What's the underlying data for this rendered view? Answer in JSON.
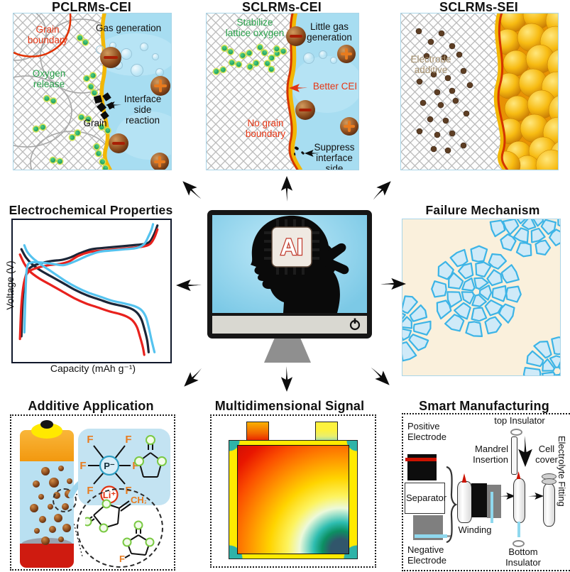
{
  "titles": {
    "tl": "PCLRMs-CEI",
    "tm": "SCLRMs-CEI",
    "tr": "SCLRMs-SEI",
    "chart": "Electrochemical Properties",
    "failure": "Failure Mechanism",
    "additive": "Additive Application",
    "signal": "Multidimensional Signal",
    "manufacturing": "Smart Manufacturing"
  },
  "icons": {
    "power": "power-icon",
    "flow_arrow": "flow-arrow-icon"
  },
  "colors": {
    "water": "#a7ddf1",
    "grid_line": "#b9b9b9",
    "boundary_gold": "#f2b705",
    "boundary_red": "#d43500",
    "oxygen_green": "#16a85a",
    "additive_dot": "#5d3e24",
    "shard_fill": "#cfeaf8",
    "shard_stroke": "#3cb4e6",
    "failure_bg": "#faf0dc",
    "chart_dark": "#1b2537",
    "chart_red": "#e8211d",
    "chart_blue": "#55c3ef"
  },
  "tl": {
    "labels": {
      "grain_boundary": "Grain\nboundary",
      "gas": "Gas generation",
      "oxygen": "Oxygen\nrelease",
      "grain": "Grain",
      "interface": "Interface\nside reaction"
    },
    "bubbles": [
      [
        121,
        50,
        5
      ],
      [
        139,
        44,
        4
      ],
      [
        158,
        56,
        7
      ],
      [
        183,
        46,
        5
      ],
      [
        199,
        60,
        4
      ],
      [
        147,
        72,
        5
      ],
      [
        173,
        79,
        8
      ],
      [
        205,
        82,
        5
      ]
    ],
    "ion_spheres": [
      [
        137,
        62,
        15,
        "minus"
      ],
      [
        207,
        102,
        14,
        "plus"
      ],
      [
        148,
        183,
        14,
        "minus"
      ],
      [
        206,
        209,
        13,
        "plus"
      ]
    ],
    "dumbbells": [
      [
        98,
        38,
        40
      ],
      [
        108,
        90,
        -25
      ],
      [
        112,
        108,
        60
      ],
      [
        101,
        148,
        15
      ],
      [
        87,
        172,
        -40
      ],
      [
        129,
        163,
        30
      ],
      [
        119,
        193,
        75
      ],
      [
        37,
        162,
        -15
      ],
      [
        61,
        208,
        10
      ],
      [
        128,
        214,
        65
      ],
      [
        52,
        122,
        20
      ]
    ],
    "diamonds": [
      [
        119,
        121,
        10
      ],
      [
        131,
        117,
        9
      ],
      [
        124,
        132,
        10
      ],
      [
        137,
        130,
        8
      ],
      [
        128,
        143,
        9
      ]
    ]
  },
  "tm": {
    "labels": {
      "stabilize": "Stabilize\nlattice oxygen",
      "little_gas": "Little gas\ngeneration",
      "better": "Better CEI",
      "no_gb": "No grain\nboundary",
      "suppress": "Suppress\ninterface\nside reaction"
    },
    "bubbles": [
      [
        143,
        62,
        7
      ],
      [
        163,
        57,
        5
      ],
      [
        178,
        65,
        4
      ]
    ],
    "ion_spheres": [
      [
        126,
        32,
        14,
        "minus"
      ],
      [
        197,
        57,
        13,
        "plus"
      ],
      [
        139,
        136,
        14,
        "minus"
      ],
      [
        201,
        159,
        13,
        "plus"
      ]
    ],
    "dumbbells": [
      [
        30,
        52,
        30
      ],
      [
        56,
        58,
        -20
      ],
      [
        79,
        52,
        50
      ],
      [
        96,
        60,
        -40
      ],
      [
        41,
        71,
        15
      ],
      [
        66,
        73,
        -30
      ],
      [
        89,
        75,
        55
      ],
      [
        19,
        81,
        -15
      ],
      [
        104,
        52,
        20
      ]
    ],
    "bits": [
      [
        127,
        191,
        6
      ],
      [
        135,
        197,
        5
      ],
      [
        124,
        199,
        4
      ]
    ]
  },
  "tr": {
    "labels": {
      "additive": "Electrode\nadditive"
    },
    "dots": [
      [
        25,
        25
      ],
      [
        42,
        40
      ],
      [
        57,
        28
      ],
      [
        72,
        46
      ],
      [
        36,
        60
      ],
      [
        61,
        62
      ],
      [
        82,
        58
      ],
      [
        26,
        96
      ],
      [
        46,
        86
      ],
      [
        66,
        91
      ],
      [
        88,
        81
      ],
      [
        51,
        111
      ],
      [
        72,
        109
      ],
      [
        31,
        126
      ],
      [
        56,
        129
      ],
      [
        77,
        123
      ],
      [
        41,
        149
      ],
      [
        63,
        151
      ],
      [
        26,
        166
      ],
      [
        51,
        171
      ],
      [
        72,
        169
      ],
      [
        46,
        191
      ],
      [
        66,
        193
      ],
      [
        88,
        186
      ],
      [
        92,
        141
      ],
      [
        97,
        101
      ]
    ],
    "gold": [
      [
        158,
        8
      ],
      [
        192,
        2
      ],
      [
        226,
        10
      ],
      [
        150,
        40
      ],
      [
        184,
        34
      ],
      [
        218,
        40
      ],
      [
        162,
        70
      ],
      [
        196,
        64
      ],
      [
        228,
        72
      ],
      [
        152,
        102
      ],
      [
        186,
        98
      ],
      [
        220,
        104
      ],
      [
        164,
        134
      ],
      [
        198,
        128
      ],
      [
        230,
        136
      ],
      [
        154,
        166
      ],
      [
        188,
        162
      ],
      [
        222,
        168
      ],
      [
        166,
        198
      ],
      [
        200,
        194
      ],
      [
        232,
        200
      ],
      [
        178,
        218
      ],
      [
        148,
        214
      ],
      [
        212,
        214
      ]
    ]
  },
  "chart_data": {
    "type": "line",
    "title": "Electrochemical Properties",
    "xlabel": "Capacity (mAh g⁻¹)",
    "ylabel": "Voltage (V)",
    "ticks": "none shown",
    "legend": "none",
    "note": "three charge/discharge voltage profiles overlaid; points are [x%, y%] of plot box, y measured from top",
    "series": [
      {
        "name": "profile-dark",
        "color": "#1b2537",
        "charge": [
          [
            3,
            86
          ],
          [
            4,
            57
          ],
          [
            6,
            40
          ],
          [
            9,
            34
          ],
          [
            15,
            31
          ],
          [
            23,
            29
          ],
          [
            31,
            28
          ],
          [
            37,
            26
          ],
          [
            43,
            23
          ],
          [
            51,
            20
          ],
          [
            59,
            19
          ],
          [
            69,
            18
          ],
          [
            79,
            17
          ],
          [
            87,
            16
          ],
          [
            91,
            14
          ],
          [
            94,
            8
          ],
          [
            96,
            2
          ]
        ],
        "discharge": [
          [
            3,
            20
          ],
          [
            6,
            26
          ],
          [
            10,
            31
          ],
          [
            16,
            36
          ],
          [
            24,
            41
          ],
          [
            32,
            46
          ],
          [
            40,
            51
          ],
          [
            48,
            55
          ],
          [
            56,
            58
          ],
          [
            64,
            61
          ],
          [
            72,
            63
          ],
          [
            78,
            65
          ],
          [
            82,
            68
          ],
          [
            85,
            73
          ],
          [
            87,
            80
          ],
          [
            89,
            89
          ],
          [
            90,
            98
          ]
        ]
      },
      {
        "name": "profile-red",
        "color": "#e8211d",
        "charge": [
          [
            2,
            88
          ],
          [
            3,
            62
          ],
          [
            5,
            44
          ],
          [
            8,
            37
          ],
          [
            14,
            34
          ],
          [
            22,
            32
          ],
          [
            30,
            31
          ],
          [
            36,
            29
          ],
          [
            42,
            25
          ],
          [
            50,
            22
          ],
          [
            58,
            21
          ],
          [
            68,
            20
          ],
          [
            78,
            19
          ],
          [
            86,
            18
          ],
          [
            91,
            16
          ],
          [
            94,
            11
          ],
          [
            96,
            5
          ]
        ],
        "discharge": [
          [
            2,
            24
          ],
          [
            5,
            31
          ],
          [
            9,
            37
          ],
          [
            15,
            42
          ],
          [
            23,
            47
          ],
          [
            31,
            52
          ],
          [
            39,
            57
          ],
          [
            47,
            61
          ],
          [
            55,
            64
          ],
          [
            63,
            67
          ],
          [
            70,
            69
          ],
          [
            75,
            71
          ],
          [
            79,
            74
          ],
          [
            82,
            79
          ],
          [
            84,
            86
          ],
          [
            86,
            94
          ],
          [
            87,
            100
          ]
        ]
      },
      {
        "name": "profile-blue",
        "color": "#55c3ef",
        "charge": [
          [
            5,
            83
          ],
          [
            6,
            47
          ],
          [
            7,
            33
          ],
          [
            10,
            30
          ],
          [
            16,
            30
          ],
          [
            24,
            31
          ],
          [
            32,
            32
          ],
          [
            40,
            29
          ],
          [
            48,
            25
          ],
          [
            56,
            22
          ],
          [
            64,
            21
          ],
          [
            74,
            20
          ],
          [
            82,
            19
          ],
          [
            87,
            16
          ],
          [
            90,
            10
          ],
          [
            92,
            5
          ],
          [
            93,
            1
          ]
        ],
        "discharge": [
          [
            5,
            17
          ],
          [
            7,
            22
          ],
          [
            11,
            27
          ],
          [
            17,
            32
          ],
          [
            25,
            38
          ],
          [
            33,
            44
          ],
          [
            41,
            49
          ],
          [
            49,
            53
          ],
          [
            57,
            56
          ],
          [
            65,
            59
          ],
          [
            73,
            61
          ],
          [
            80,
            63
          ],
          [
            85,
            66
          ],
          [
            88,
            71
          ],
          [
            90,
            79
          ],
          [
            92,
            89
          ],
          [
            94,
            98
          ]
        ]
      }
    ]
  },
  "monitor": {
    "chip": "AI"
  },
  "failure": {
    "clusters": [
      [
        104,
        102,
        64,
        3
      ],
      [
        180,
        -6,
        60,
        3
      ],
      [
        -8,
        152,
        50,
        2
      ],
      [
        218,
        214,
        50,
        2
      ]
    ]
  },
  "additive": {
    "f": "F",
    "p": "P⁻",
    "li": "Li⁺",
    "ch2": "CH₂",
    "dots": [
      [
        40,
        72,
        6
      ],
      [
        62,
        68,
        4
      ],
      [
        27,
        90,
        5
      ],
      [
        52,
        88,
        7
      ],
      [
        74,
        86,
        4
      ],
      [
        34,
        108,
        4
      ],
      [
        56,
        106,
        5
      ],
      [
        73,
        104,
        6
      ],
      [
        24,
        124,
        6
      ],
      [
        47,
        122,
        4
      ],
      [
        68,
        122,
        5
      ],
      [
        36,
        140,
        5
      ],
      [
        58,
        138,
        6
      ],
      [
        28,
        156,
        4
      ],
      [
        50,
        154,
        5
      ],
      [
        70,
        152,
        6
      ],
      [
        40,
        170,
        6
      ],
      [
        62,
        168,
        4
      ]
    ]
  },
  "manufacturing": {
    "labels": {
      "positive": "Positive\nElectrode",
      "separator": "Separator",
      "negative": "Negative\nElectrode",
      "winding": "Winding",
      "top_insulator": "top Insulator",
      "mandrel": "Mandrel\nInsertion",
      "cell_cover": "Cell\ncover",
      "bottom_insulator": "Bottom\nInsulator",
      "electrolyte": "Electrolyte Fitting"
    }
  }
}
